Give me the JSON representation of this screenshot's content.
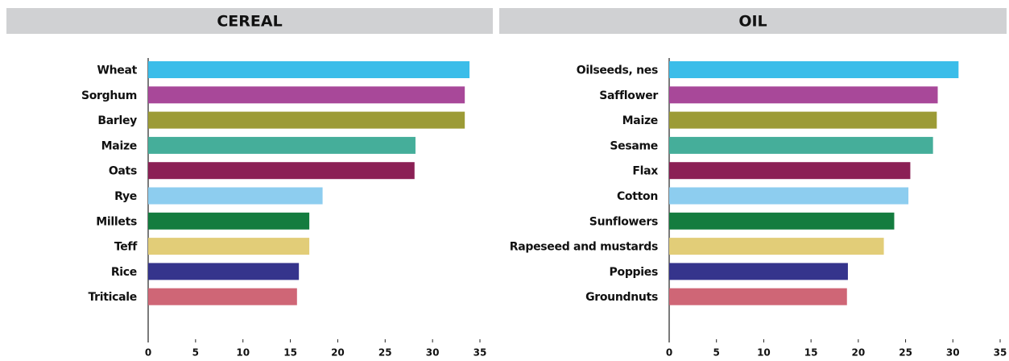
{
  "chart_data": [
    {
      "type": "bar",
      "orientation": "horizontal",
      "title": "CEREAL",
      "categories": [
        "Wheat",
        "Sorghum",
        "Barley",
        "Maize",
        "Oats",
        "Rye",
        "Millets",
        "Teff",
        "Rice",
        "Triticale"
      ],
      "values": [
        33.9,
        33.4,
        33.4,
        28.2,
        28.1,
        18.4,
        17.0,
        17.0,
        15.9,
        15.7
      ],
      "colors": [
        "#3bbde9",
        "#a84899",
        "#9c9b36",
        "#45ae9a",
        "#8b2055",
        "#8dcdef",
        "#147c3f",
        "#e2cd78",
        "#35348c",
        "#cf6676"
      ],
      "xlim": [
        0,
        35
      ],
      "xticks": [
        0,
        5,
        10,
        15,
        20,
        25,
        30,
        35
      ]
    },
    {
      "type": "bar",
      "orientation": "horizontal",
      "title": "OIL",
      "categories": [
        "Oilseeds, nes",
        "Safflower",
        "Maize",
        "Sesame",
        "Flax",
        "Cotton",
        "Sunflowers",
        "Rapeseed and mustards",
        "Poppies",
        "Groundnuts"
      ],
      "values": [
        30.6,
        28.4,
        28.3,
        27.9,
        25.5,
        25.3,
        23.8,
        22.7,
        18.9,
        18.8
      ],
      "colors": [
        "#3bbde9",
        "#a84899",
        "#9c9b36",
        "#45ae9a",
        "#8b2055",
        "#8dcdef",
        "#147c3f",
        "#e2cd78",
        "#35348c",
        "#cf6676"
      ],
      "xlim": [
        0,
        35
      ],
      "xticks": [
        0,
        5,
        10,
        15,
        20,
        25,
        30,
        35
      ]
    }
  ]
}
